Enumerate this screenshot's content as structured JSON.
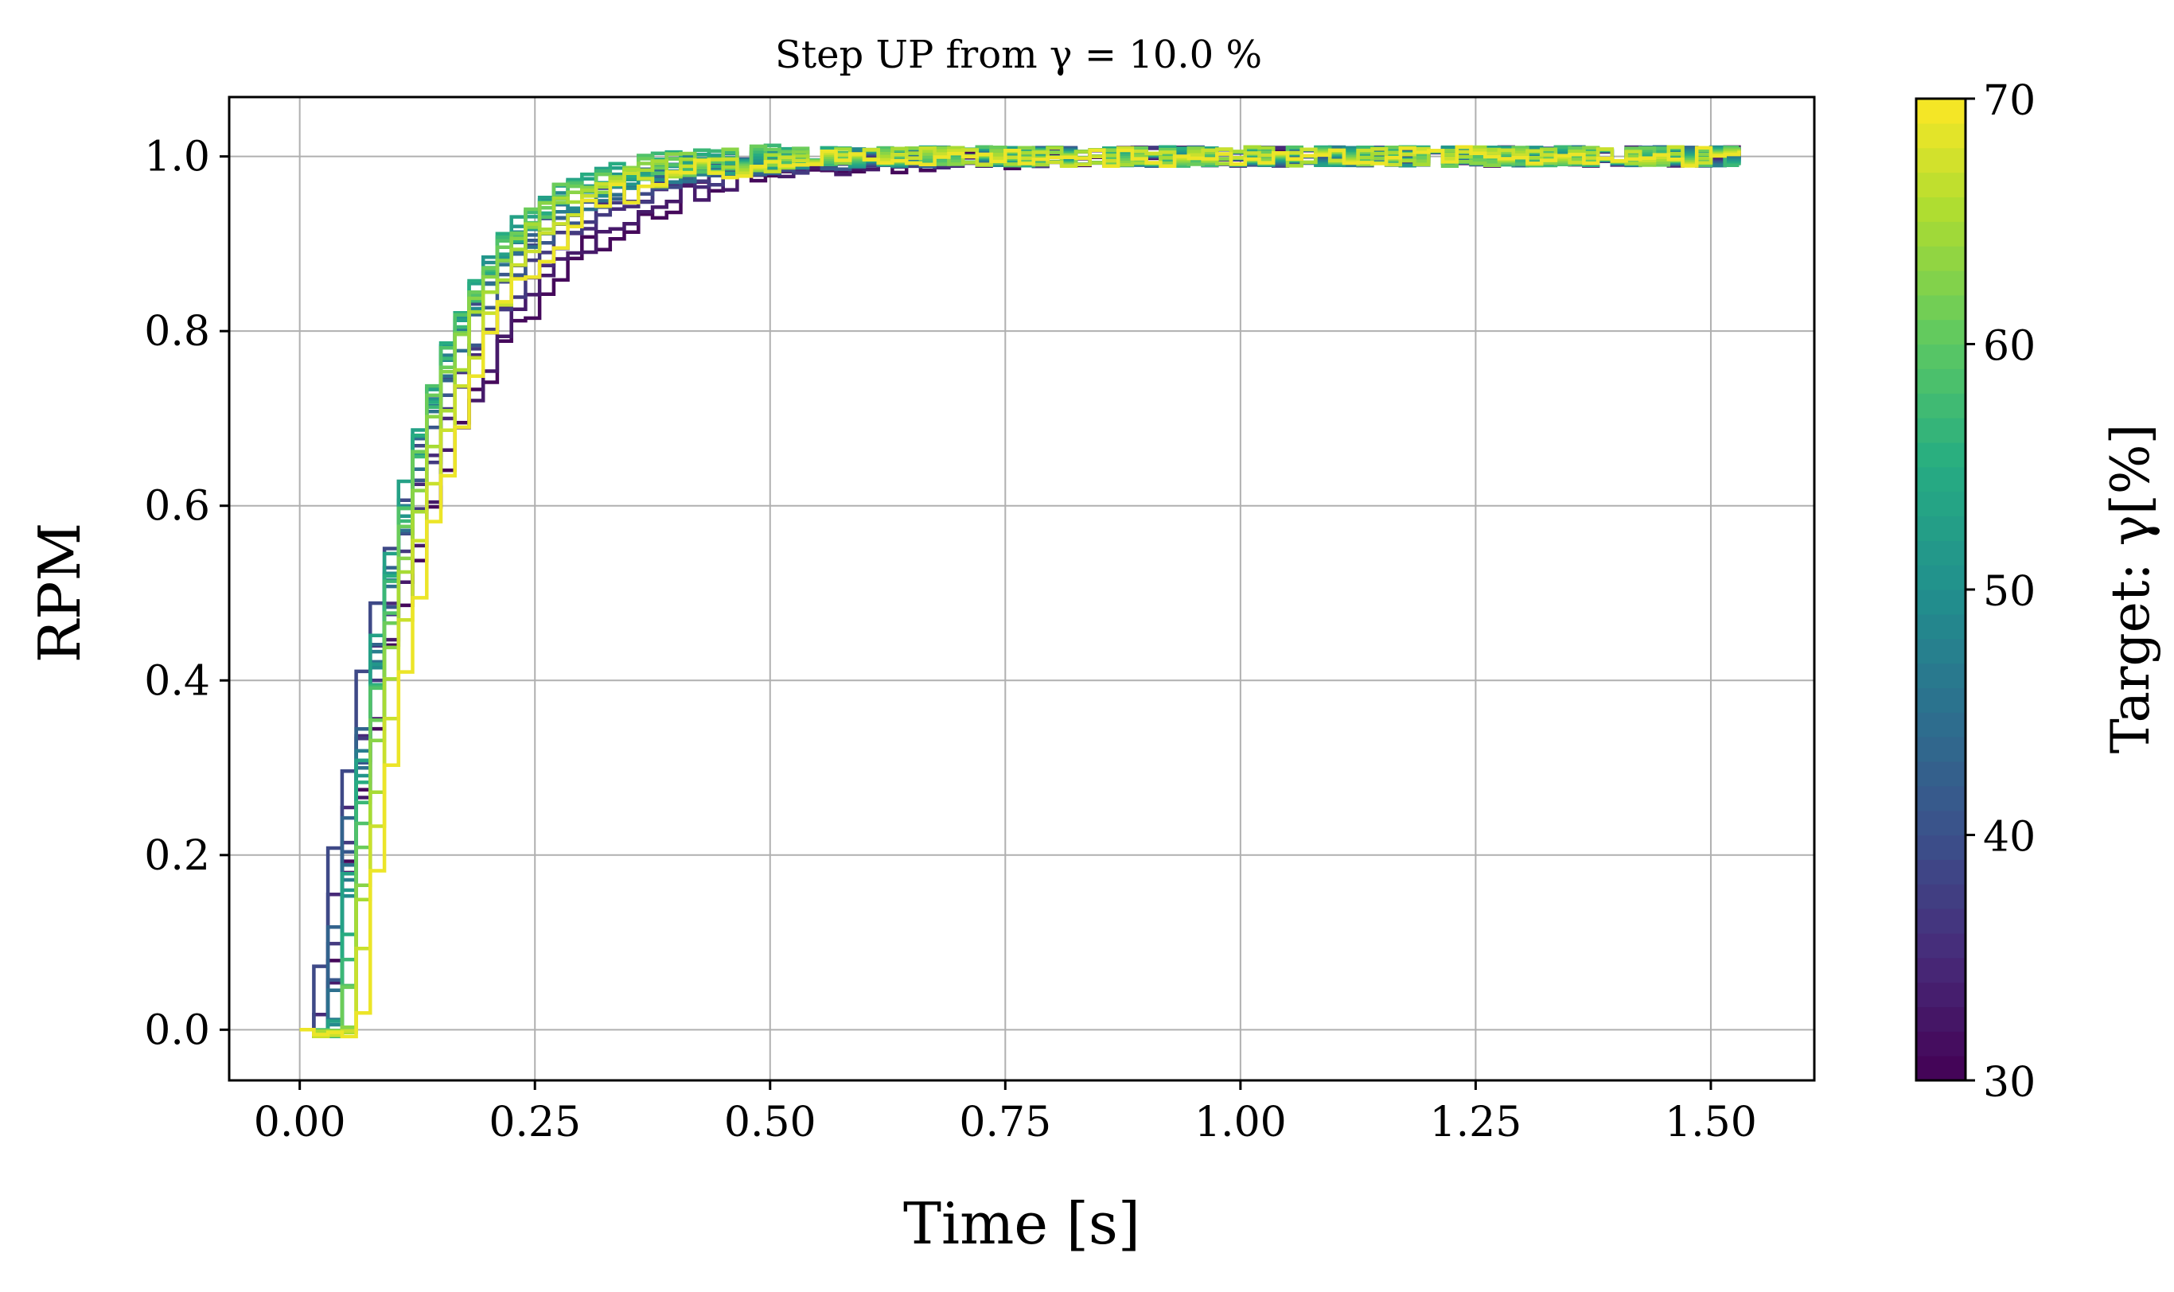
{
  "chart_data": {
    "type": "line",
    "title": "Step UP from γ = 10.0 %",
    "xlabel": "Time [s]",
    "ylabel": "RPM",
    "xlim": [
      -0.075,
      1.61
    ],
    "ylim": [
      -0.058,
      1.068
    ],
    "x_ticks": [
      "0.00",
      "0.25",
      "0.50",
      "0.75",
      "1.00",
      "1.25",
      "1.50"
    ],
    "x_tick_values": [
      0,
      0.25,
      0.5,
      0.75,
      1.0,
      1.25,
      1.5
    ],
    "y_ticks": [
      "0.0",
      "0.2",
      "0.4",
      "0.6",
      "0.8",
      "1.0"
    ],
    "y_tick_values": [
      0,
      0.2,
      0.4,
      0.6,
      0.8,
      1.0
    ],
    "grid": true,
    "legend": "colorbar-right",
    "colorbar": {
      "label": "Target: γ[%]",
      "colormap": "viridis",
      "min": 30,
      "max": 70,
      "ticks": [
        "30",
        "40",
        "50",
        "60",
        "70"
      ],
      "tick_values": [
        30,
        40,
        50,
        60,
        70
      ],
      "levels": 40
    },
    "series_model": "first-order step response with dead time, sampled as step trace",
    "series": [
      {
        "target": 31,
        "delay": 0.02,
        "tau": 0.125
      },
      {
        "target": 33,
        "delay": 0.022,
        "tau": 0.12
      },
      {
        "target": 35,
        "delay": 0.012,
        "tau": 0.112
      },
      {
        "target": 37,
        "delay": 0.018,
        "tau": 0.108
      },
      {
        "target": 39,
        "delay": 0.008,
        "tau": 0.1
      },
      {
        "target": 41,
        "delay": 0.024,
        "tau": 0.098
      },
      {
        "target": 43,
        "delay": 0.02,
        "tau": 0.092
      },
      {
        "target": 45,
        "delay": 0.026,
        "tau": 0.09
      },
      {
        "target": 47,
        "delay": 0.028,
        "tau": 0.086
      },
      {
        "target": 49,
        "delay": 0.03,
        "tau": 0.082
      },
      {
        "target": 51,
        "delay": 0.032,
        "tau": 0.08
      },
      {
        "target": 53,
        "delay": 0.03,
        "tau": 0.078
      },
      {
        "target": 55,
        "delay": 0.036,
        "tau": 0.076
      },
      {
        "target": 57,
        "delay": 0.038,
        "tau": 0.075
      },
      {
        "target": 59,
        "delay": 0.04,
        "tau": 0.074
      },
      {
        "target": 61,
        "delay": 0.042,
        "tau": 0.074
      },
      {
        "target": 63,
        "delay": 0.045,
        "tau": 0.076
      },
      {
        "target": 65,
        "delay": 0.048,
        "tau": 0.08
      },
      {
        "target": 67,
        "delay": 0.052,
        "tau": 0.085
      },
      {
        "target": 69,
        "delay": 0.058,
        "tau": 0.088
      }
    ],
    "t_end": 1.53,
    "sample_dt": 0.015
  }
}
